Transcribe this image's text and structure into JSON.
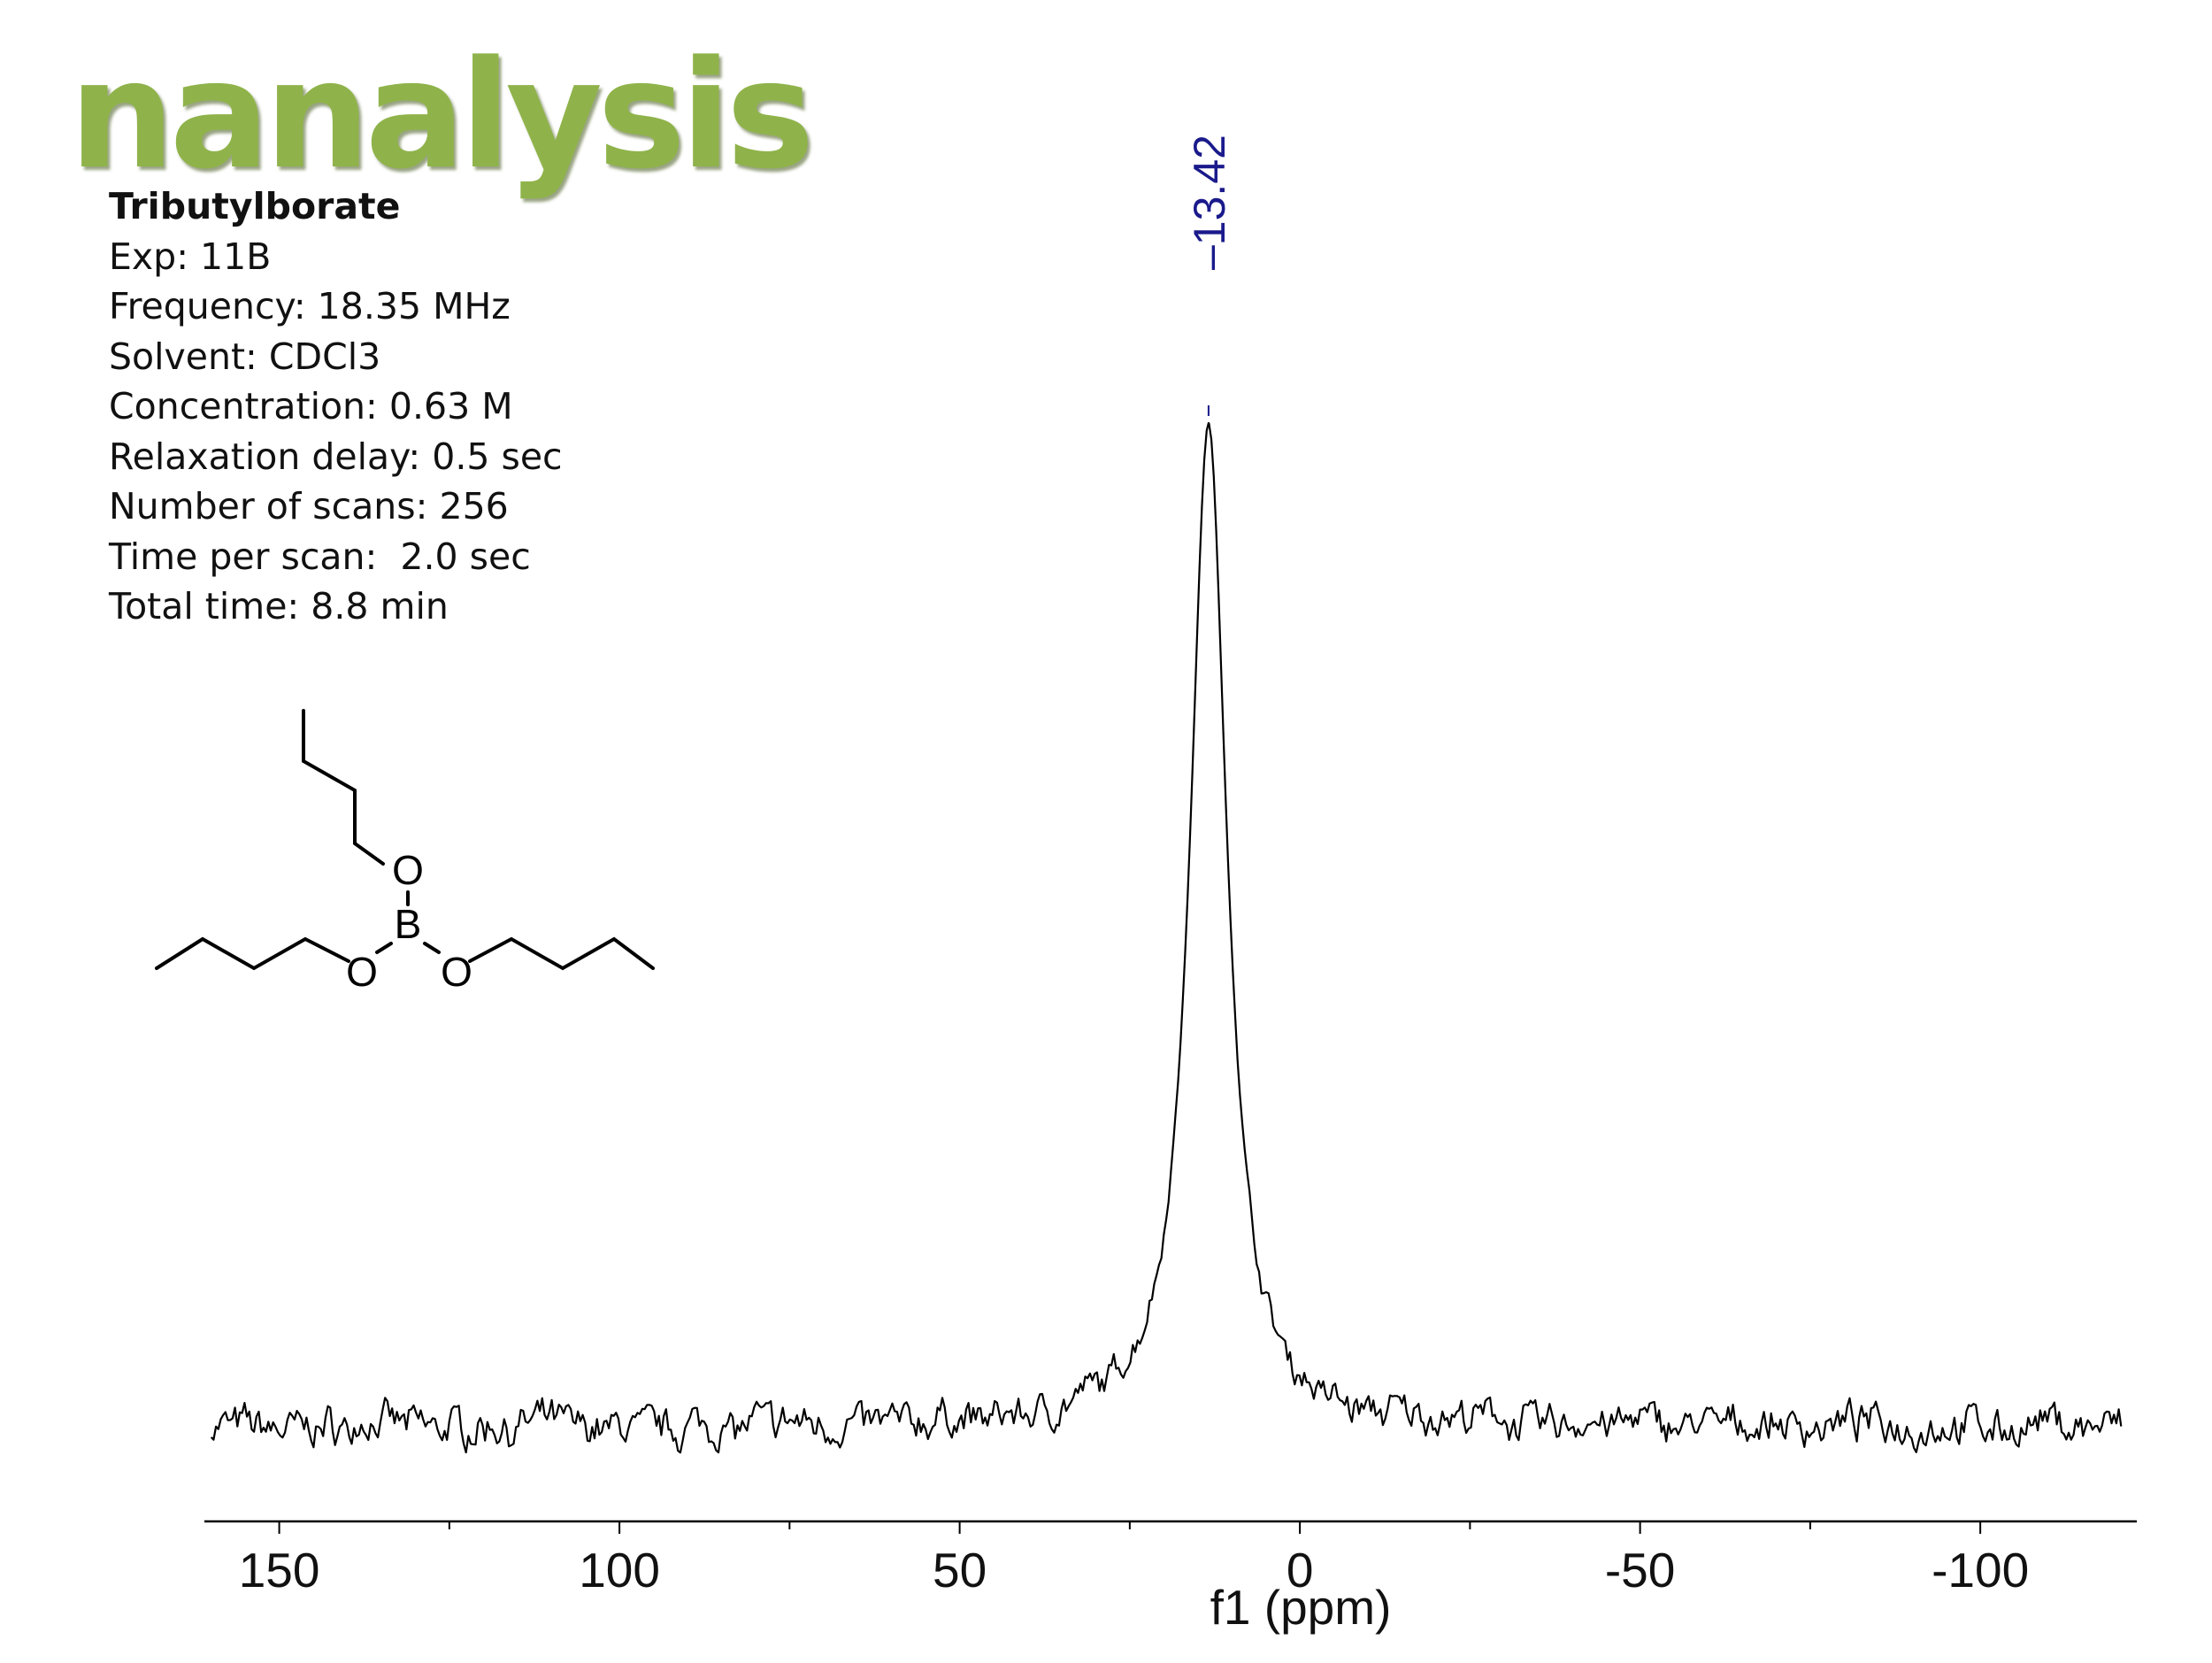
{
  "logo": {
    "text": "nanalysis",
    "color": "#8fb34a"
  },
  "info": {
    "title": "Tributylborate",
    "lines": [
      "Exp: 11B",
      "Frequency: 18.35 MHz",
      "Solvent: CDCl3",
      "Concentration: 0.63 M",
      "Relaxation delay: 0.5 sec",
      "Number of scans: 256",
      "Time per scan:  2.0 sec",
      "Total time: 8.8 min"
    ]
  },
  "structure": {
    "atoms": {
      "oxygen": "O",
      "boron": "B"
    }
  },
  "chart_data": {
    "type": "line",
    "title": "",
    "xlabel": "f1 (ppm)",
    "ylabel": "",
    "xlim": [
      161,
      -123
    ],
    "x_reversed": true,
    "x_ticks": [
      150,
      100,
      50,
      0,
      -50,
      -100
    ],
    "x_tick_labels": [
      "150",
      "100",
      "50",
      "0",
      "-50",
      "-100"
    ],
    "spectrum_range": [
      160,
      -121
    ],
    "baseline": 0,
    "peaks": [
      {
        "x": 13.42,
        "height": 100,
        "width": 6.5,
        "label": "13.42"
      }
    ],
    "line_color": "#000000",
    "peak_label_color": "#1a1a8c",
    "grid": false
  }
}
